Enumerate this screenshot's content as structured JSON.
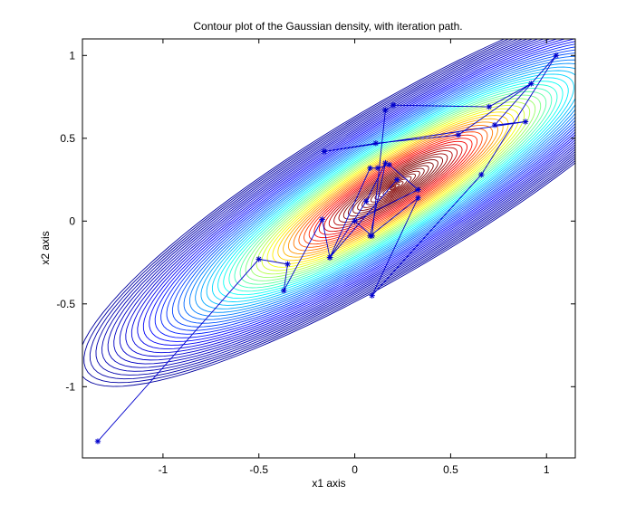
{
  "chart_data": {
    "type": "contour",
    "title": "Contour plot of the Gaussian density, with iteration path.",
    "xlabel": "x1 axis",
    "ylabel": "x2 axis",
    "xlim": [
      -1.42,
      1.15
    ],
    "ylim": [
      -1.43,
      1.1
    ],
    "xticks": [
      -1,
      -0.5,
      0,
      0.5,
      1
    ],
    "yticks": [
      -1,
      -0.5,
      0,
      0.5,
      1
    ],
    "xtick_labels": [
      "-1",
      "-0.5",
      "0",
      "0.5",
      "1"
    ],
    "ytick_labels": [
      "-1",
      "-0.5",
      "0",
      "0.5",
      "1"
    ],
    "grid": false,
    "colormap": "jet",
    "density": {
      "mean": [
        0.2,
        0.2
      ],
      "major_axis_angle_deg": 35,
      "sigma_major": 0.55,
      "sigma_minor": 0.13,
      "levels": 60
    },
    "iteration_path": {
      "name": "",
      "color": "#0000cc",
      "marker": "*",
      "x": [
        -1.34,
        -0.5,
        -0.35,
        -0.37,
        -0.17,
        -0.13,
        0.08,
        0.12,
        0.18,
        0.33,
        0.0,
        0.09,
        0.16,
        0.2,
        0.7,
        0.92,
        0.54,
        0.11,
        -0.16,
        0.89,
        0.73,
        1.05,
        0.66,
        0.09,
        0.33,
        0.08,
        0.16,
        0.06,
        -0.13,
        0.22
      ],
      "y": [
        -1.33,
        -0.23,
        -0.26,
        -0.42,
        0.01,
        -0.22,
        0.32,
        0.32,
        0.34,
        0.19,
        0.0,
        -0.09,
        0.67,
        0.7,
        0.69,
        0.83,
        0.52,
        0.47,
        0.42,
        0.6,
        0.58,
        1.0,
        0.28,
        -0.45,
        0.14,
        -0.09,
        0.35,
        0.12,
        -0.22,
        0.25
      ]
    }
  }
}
